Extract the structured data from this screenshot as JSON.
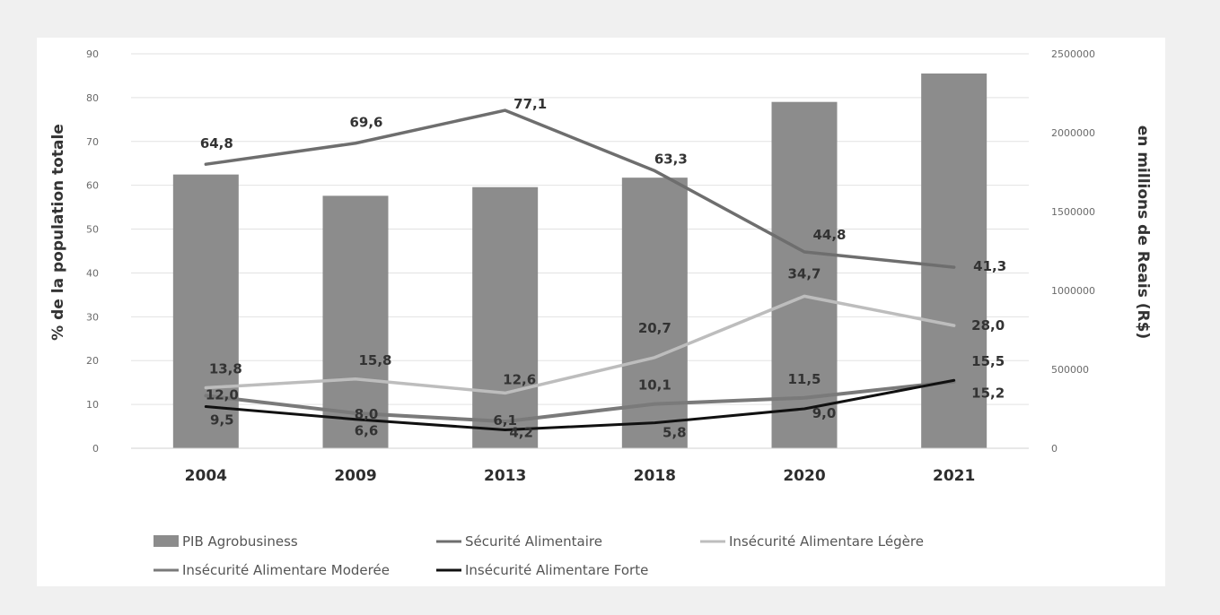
{
  "chart_data": {
    "type": "bar+line",
    "categories": [
      "2004",
      "2009",
      "2013",
      "2018",
      "2020",
      "2021"
    ],
    "ylabel": "% de la population totale",
    "ylabel_right": "en millions de Reais (R$)",
    "ylim": [
      0,
      90
    ],
    "ylim_right": [
      0,
      2500000
    ],
    "y_ticks": [
      "0",
      "10",
      "20",
      "30",
      "40",
      "50",
      "60",
      "70",
      "80",
      "90"
    ],
    "y_right_ticks": [
      "0",
      "500000",
      "1000000",
      "1500000",
      "2000000",
      "2500000"
    ],
    "grid": true,
    "legend_position": "bottom",
    "series": [
      {
        "name": "PIB Agrobusiness",
        "kind": "bar",
        "axis": "right",
        "color": "#8c8c8c",
        "values": [
          1735000,
          1600000,
          1655000,
          1715000,
          2195000,
          2375000
        ]
      },
      {
        "name": "Sécurité Alimentaire",
        "kind": "line",
        "axis": "left",
        "color": "#6e6e6e",
        "values": [
          64.8,
          69.6,
          77.1,
          63.3,
          44.8,
          41.3
        ],
        "labels": [
          "64,8",
          "69,6",
          "77,1",
          "63,3",
          "44,8",
          "41,3"
        ]
      },
      {
        "name": "Insécurité Alimentare Légère",
        "kind": "line",
        "axis": "left",
        "color": "#bdbdbd",
        "values": [
          13.8,
          15.8,
          12.6,
          20.7,
          34.7,
          28.0
        ],
        "labels": [
          "13,8",
          "15,8",
          "12,6",
          "20,7",
          "34,7",
          "28,0"
        ]
      },
      {
        "name": "Insécurité Alimentare Moderée",
        "kind": "line",
        "axis": "left",
        "color": "#7a7a7a",
        "values": [
          12.0,
          8.0,
          6.1,
          10.1,
          11.5,
          15.2
        ],
        "labels": [
          "12,0",
          "8,0",
          "6,1",
          "10,1",
          "11,5",
          "15,2"
        ]
      },
      {
        "name": "Insécurité Alimentare Forte",
        "kind": "line",
        "axis": "left",
        "color": "#111111",
        "values": [
          9.5,
          6.6,
          4.2,
          5.8,
          9.0,
          15.5
        ],
        "labels": [
          "9,5",
          "6,6",
          "4,2",
          "5,8",
          "9,0",
          "15,5"
        ]
      }
    ]
  }
}
